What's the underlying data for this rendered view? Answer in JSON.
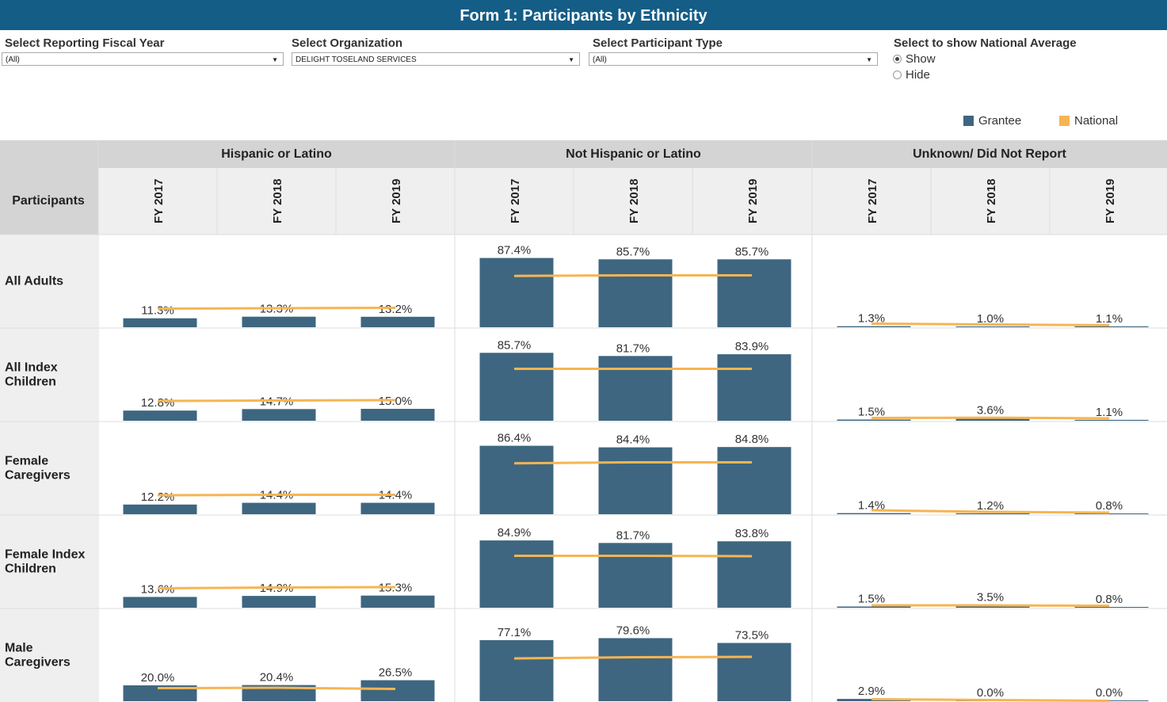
{
  "title": "Form 1: Participants by Ethnicity",
  "filters": {
    "fiscal_year": {
      "label": "Select Reporting Fiscal Year",
      "value": "(All)"
    },
    "organization": {
      "label": "Select Organization",
      "value": "DELIGHT TOSELAND SERVICES"
    },
    "participant_type": {
      "label": "Select Participant Type",
      "value": "(All)"
    },
    "national_average": {
      "label": "Select to show National Average",
      "options": [
        "Show",
        "Hide"
      ],
      "selected": "Show"
    }
  },
  "colors": {
    "grantee": "#3e6680",
    "national": "#f6b552",
    "header_bg": "#d4d4d4",
    "subheader_bg": "#efefef"
  },
  "chart_data": {
    "type": "bar",
    "row_header": "Participants",
    "legend": {
      "placement": "top-right",
      "entries": [
        "Grantee",
        "National"
      ]
    },
    "groups": [
      "Hispanic or Latino",
      "Not Hispanic or Latino",
      "Unknown/ Did Not Report"
    ],
    "years": [
      "FY 2017",
      "FY 2018",
      "FY 2019"
    ],
    "rows": [
      {
        "name": "All Adults",
        "grantee": [
          [
            11.3,
            13.3,
            13.2
          ],
          [
            87.4,
            85.7,
            85.7
          ],
          [
            1.3,
            1.0,
            1.1
          ]
        ],
        "national": [
          [
            23.5,
            24.0,
            24.5
          ],
          [
            64.8,
            65.5,
            65.5
          ],
          [
            4.5,
            3.5,
            2.5
          ]
        ]
      },
      {
        "name": "All Index Children",
        "grantee": [
          [
            12.8,
            14.7,
            15.0
          ],
          [
            85.7,
            81.7,
            83.9
          ],
          [
            1.5,
            3.6,
            1.1
          ]
        ],
        "national": [
          [
            25.0,
            25.5,
            26.0
          ],
          [
            65.5,
            65.5,
            65.5
          ],
          [
            3.5,
            3.8,
            3.0
          ]
        ]
      },
      {
        "name": "Female Caregivers",
        "grantee": [
          [
            12.2,
            14.4,
            14.4
          ],
          [
            86.4,
            84.4,
            84.8
          ],
          [
            1.4,
            1.2,
            0.8
          ]
        ],
        "national": [
          [
            24.0,
            24.5,
            24.5
          ],
          [
            64.3,
            65.5,
            65.5
          ],
          [
            5.0,
            3.0,
            2.0
          ]
        ]
      },
      {
        "name": "Female Index Children",
        "grantee": [
          [
            13.6,
            14.9,
            15.3
          ],
          [
            84.9,
            81.7,
            83.8
          ],
          [
            1.5,
            3.5,
            0.8
          ]
        ],
        "national": [
          [
            24.5,
            25.5,
            26.0
          ],
          [
            65.5,
            65.5,
            65.0
          ],
          [
            3.0,
            3.0,
            2.5
          ]
        ]
      },
      {
        "name": "Male Caregivers",
        "grantee": [
          [
            20.0,
            20.4,
            26.5
          ],
          [
            77.1,
            79.6,
            73.5
          ],
          [
            2.9,
            0.0,
            0.0
          ]
        ],
        "national": [
          [
            16.5,
            17.0,
            15.5
          ],
          [
            54.0,
            55.5,
            56.0
          ],
          [
            2.5,
            1.5,
            0.5
          ]
        ]
      }
    ],
    "ylim": [
      0,
      100
    ]
  }
}
